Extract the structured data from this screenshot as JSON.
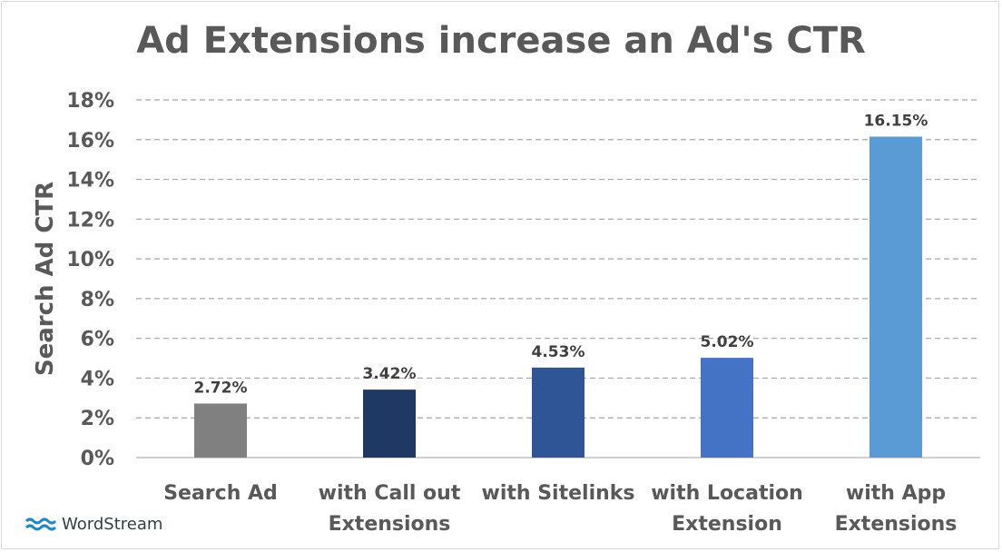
{
  "chart_data": {
    "type": "bar",
    "title": "Ad Extensions increase an Ad's CTR",
    "ylabel": "Search Ad CTR",
    "xlabel": "",
    "ylim": [
      0,
      18
    ],
    "yticks": [
      0,
      2,
      4,
      6,
      8,
      10,
      12,
      14,
      16,
      18
    ],
    "ytick_labels": [
      "0%",
      "2%",
      "4%",
      "6%",
      "8%",
      "10%",
      "12%",
      "14%",
      "16%",
      "18%"
    ],
    "grid": true,
    "categories": [
      [
        "Search Ad"
      ],
      [
        "with Call out",
        "Extensions"
      ],
      [
        "with Sitelinks"
      ],
      [
        "with Location",
        "Extension"
      ],
      [
        "with App",
        "Extensions"
      ]
    ],
    "values": [
      2.72,
      3.42,
      4.53,
      5.02,
      16.15
    ],
    "value_labels": [
      "2.72%",
      "3.42%",
      "4.53%",
      "5.02%",
      "16.15%"
    ],
    "colors": [
      "#808080",
      "#203864",
      "#2f5597",
      "#4472c4",
      "#5b9bd5"
    ]
  },
  "branding": {
    "logo_text": "WordStream",
    "logo_color": "#1e88c7"
  }
}
